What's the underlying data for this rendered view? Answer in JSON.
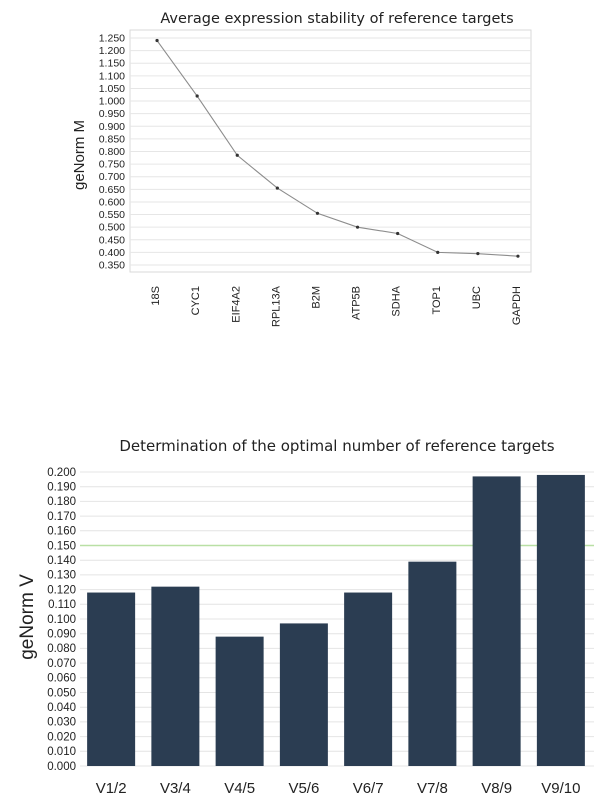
{
  "chart_data": [
    {
      "type": "line",
      "title": "Average expression stability of reference targets",
      "xlabel": "",
      "ylabel": "geNorm M",
      "categories": [
        "18S",
        "CYC1",
        "EIF4A2",
        "RPL13A",
        "B2M",
        "ATP5B",
        "SDHA",
        "TOP1",
        "UBC",
        "GAPDH"
      ],
      "values": [
        1.24,
        1.02,
        0.785,
        0.655,
        0.555,
        0.5,
        0.475,
        0.4,
        0.395,
        0.385
      ],
      "ylim": [
        0.35,
        1.25
      ],
      "yticks": [
        "0.350",
        "0.400",
        "0.450",
        "0.500",
        "0.550",
        "0.600",
        "0.650",
        "0.700",
        "0.750",
        "0.800",
        "0.850",
        "0.900",
        "0.950",
        "1.000",
        "1.050",
        "1.100",
        "1.150",
        "1.200",
        "1.250"
      ],
      "grid": true,
      "line_color": "#8c8c8c",
      "marker_color": "#333333"
    },
    {
      "type": "bar",
      "title": "Determination of the optimal number of reference targets",
      "xlabel": "",
      "ylabel": "geNorm V",
      "categories": [
        "V1/2",
        "V3/4",
        "V4/5",
        "V5/6",
        "V6/7",
        "V7/8",
        "V8/9",
        "V9/10"
      ],
      "values": [
        0.118,
        0.122,
        0.088,
        0.097,
        0.118,
        0.139,
        0.197,
        0.198
      ],
      "ylim": [
        0.0,
        0.2
      ],
      "yticks": [
        "0.000",
        "0.010",
        "0.020",
        "0.030",
        "0.040",
        "0.050",
        "0.060",
        "0.070",
        "0.080",
        "0.090",
        "0.100",
        "0.110",
        "0.120",
        "0.130",
        "0.140",
        "0.150",
        "0.160",
        "0.170",
        "0.180",
        "0.190",
        "0.200"
      ],
      "threshold": 0.15,
      "threshold_color": "#b9e0a5",
      "bar_color": "#2b3d52",
      "grid": true
    }
  ]
}
